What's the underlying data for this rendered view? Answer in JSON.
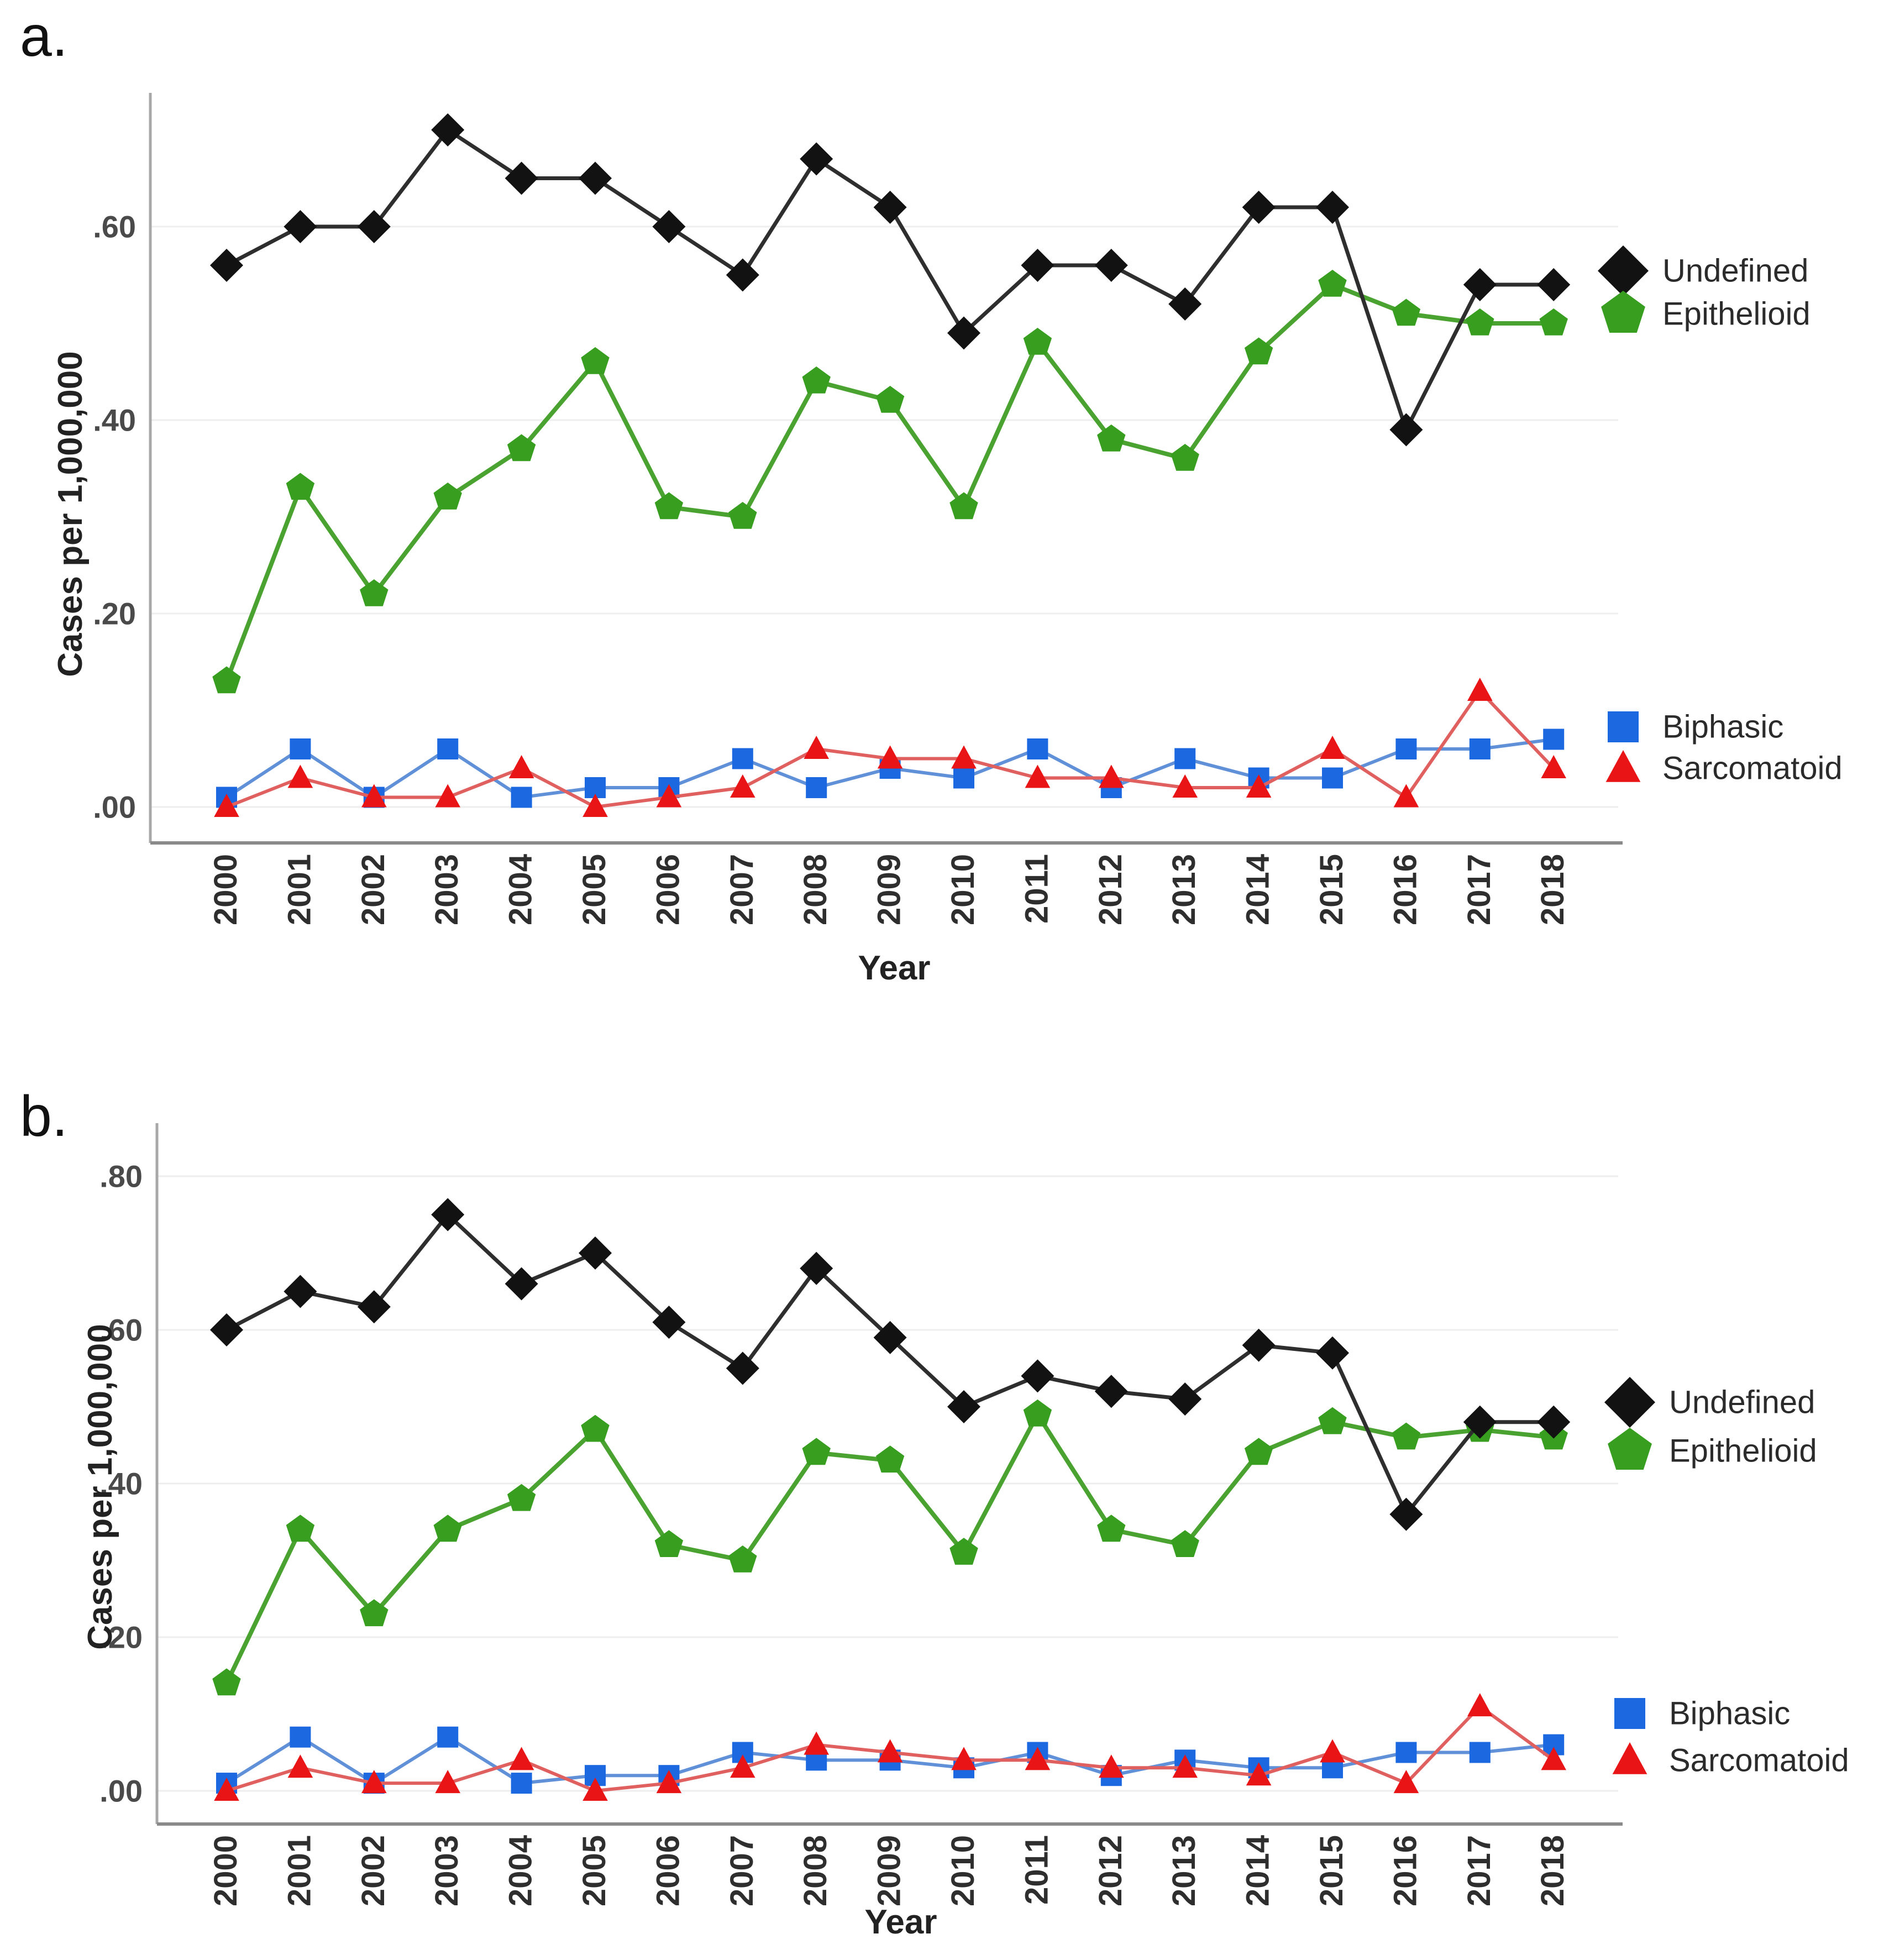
{
  "figure": {
    "background": "#ffffff",
    "panels": [
      {
        "label": "a."
      },
      {
        "label": "b."
      }
    ],
    "colors": {
      "gridline": "#eeeeee",
      "y_axis_line": "#a8a8a8",
      "x_axis_line": "#8a8a8a",
      "tick_text": "#3c3c3c",
      "title_text": "#222222",
      "legend_text": "#2b2b2b"
    }
  },
  "chart_data": [
    {
      "type": "line",
      "panel": "a",
      "title": "",
      "xlabel": "Year",
      "ylabel": "Cases per 1,000,000",
      "ylim": [
        0,
        0.75
      ],
      "grid": "horizontal",
      "legend_position": "right",
      "y_ticks": [
        {
          "value": 0.0,
          "label": ".00"
        },
        {
          "value": 0.2,
          "label": ".20"
        },
        {
          "value": 0.4,
          "label": ".40"
        },
        {
          "value": 0.6,
          "label": ".60"
        }
      ],
      "categories": [
        "2000",
        "2001",
        "2002",
        "2003",
        "2004",
        "2005",
        "2006",
        "2007",
        "2008",
        "2009",
        "2010",
        "2011",
        "2012",
        "2013",
        "2014",
        "2015",
        "2016",
        "2017",
        "2018"
      ],
      "series": [
        {
          "name": "Undefined",
          "marker": "diamond",
          "marker_color": "#121212",
          "line_color": "#2e2e2e",
          "line_width": 7,
          "values": [
            0.56,
            0.6,
            0.6,
            0.7,
            0.65,
            0.65,
            0.6,
            0.55,
            0.67,
            0.62,
            0.49,
            0.56,
            0.56,
            0.52,
            0.62,
            0.62,
            0.39,
            0.54,
            0.54
          ]
        },
        {
          "name": "Epithelioid",
          "marker": "pentagon",
          "marker_color": "#379e1f",
          "line_color": "#4aa330",
          "line_width": 8,
          "values": [
            0.13,
            0.33,
            0.22,
            0.32,
            0.37,
            0.46,
            0.31,
            0.3,
            0.44,
            0.42,
            0.31,
            0.48,
            0.38,
            0.36,
            0.47,
            0.54,
            0.51,
            0.5,
            0.5
          ]
        },
        {
          "name": "Biphasic",
          "marker": "square",
          "marker_color": "#1b68e0",
          "line_color": "#6090d8",
          "line_width": 6,
          "values": [
            0.01,
            0.06,
            0.01,
            0.06,
            0.01,
            0.02,
            0.02,
            0.05,
            0.02,
            0.04,
            0.03,
            0.06,
            0.02,
            0.05,
            0.03,
            0.03,
            0.06,
            0.06,
            0.07
          ]
        },
        {
          "name": "Sarcomatoid",
          "marker": "triangle",
          "marker_color": "#e81416",
          "line_color": "#e06060",
          "line_width": 6,
          "values": [
            0.0,
            0.03,
            0.01,
            0.01,
            0.04,
            0.0,
            0.01,
            0.02,
            0.06,
            0.05,
            0.05,
            0.03,
            0.03,
            0.02,
            0.02,
            0.06,
            0.01,
            0.12,
            0.04
          ]
        }
      ]
    },
    {
      "type": "line",
      "panel": "b",
      "title": "",
      "xlabel": "Year",
      "ylabel": "Cases per 1,000,000",
      "ylim": [
        0,
        0.85
      ],
      "grid": "horizontal",
      "legend_position": "right",
      "y_ticks": [
        {
          "value": 0.0,
          "label": ".00"
        },
        {
          "value": 0.2,
          "label": ".20"
        },
        {
          "value": 0.4,
          "label": ".40"
        },
        {
          "value": 0.6,
          "label": ".60"
        },
        {
          "value": 0.8,
          "label": ".80"
        }
      ],
      "categories": [
        "2000",
        "2001",
        "2002",
        "2003",
        "2004",
        "2005",
        "2006",
        "2007",
        "2008",
        "2009",
        "2010",
        "2011",
        "2012",
        "2013",
        "2014",
        "2015",
        "2016",
        "2017",
        "2018"
      ],
      "series": [
        {
          "name": "Undefined",
          "marker": "diamond",
          "marker_color": "#121212",
          "line_color": "#2e2e2e",
          "line_width": 7,
          "values": [
            0.6,
            0.65,
            0.63,
            0.75,
            0.66,
            0.7,
            0.61,
            0.55,
            0.68,
            0.59,
            0.5,
            0.54,
            0.52,
            0.51,
            0.58,
            0.57,
            0.36,
            0.48,
            0.48
          ]
        },
        {
          "name": "Epithelioid",
          "marker": "pentagon",
          "marker_color": "#379e1f",
          "line_color": "#4aa330",
          "line_width": 8,
          "values": [
            0.14,
            0.34,
            0.23,
            0.34,
            0.38,
            0.47,
            0.32,
            0.3,
            0.44,
            0.43,
            0.31,
            0.49,
            0.34,
            0.32,
            0.44,
            0.48,
            0.46,
            0.47,
            0.46
          ]
        },
        {
          "name": "Biphasic",
          "marker": "square",
          "marker_color": "#1b68e0",
          "line_color": "#6090d8",
          "line_width": 6,
          "values": [
            0.01,
            0.07,
            0.01,
            0.07,
            0.01,
            0.02,
            0.02,
            0.05,
            0.04,
            0.04,
            0.03,
            0.05,
            0.02,
            0.04,
            0.03,
            0.03,
            0.05,
            0.05,
            0.06
          ]
        },
        {
          "name": "Sarcomatoid",
          "marker": "triangle",
          "marker_color": "#e81416",
          "line_color": "#e06060",
          "line_width": 6,
          "values": [
            0.0,
            0.03,
            0.01,
            0.01,
            0.04,
            0.0,
            0.01,
            0.03,
            0.06,
            0.05,
            0.04,
            0.04,
            0.03,
            0.03,
            0.02,
            0.05,
            0.01,
            0.11,
            0.04
          ]
        }
      ]
    }
  ]
}
